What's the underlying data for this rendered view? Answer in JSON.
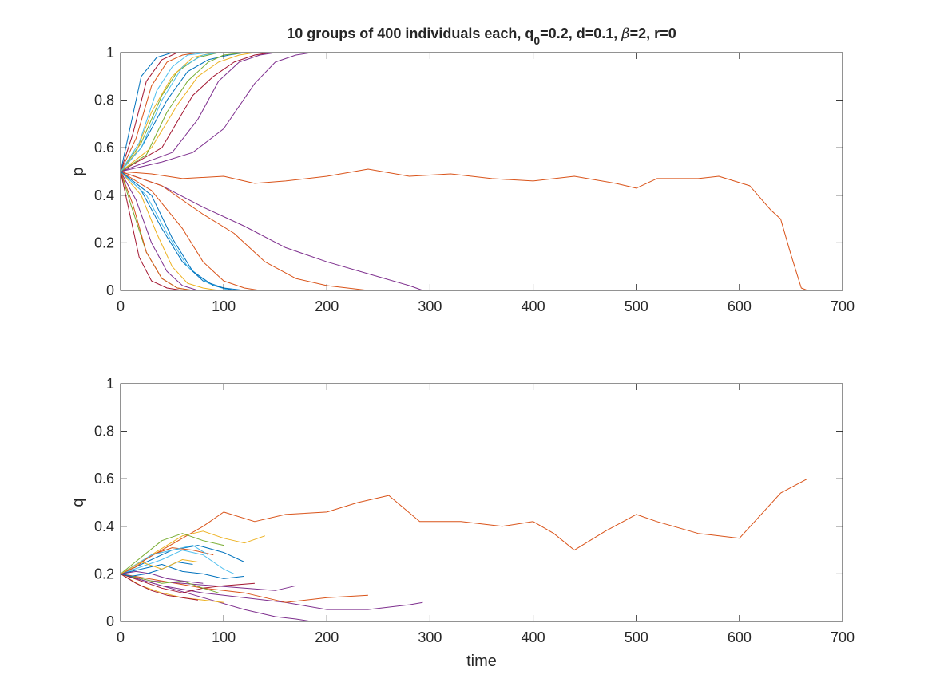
{
  "chart_data": [
    {
      "type": "line",
      "title": "10 groups of 400 individuals each, q0=0.2, d=0.1, β=2, r=0",
      "title_parts": {
        "prefix": "10 groups of 400 individuals each, q",
        "subscript": "0",
        "middle": "=0.2, d=0.1, ",
        "beta": "β",
        "suffix": "=2, r=0"
      },
      "xlabel": "",
      "ylabel": "p",
      "xlim": [
        0,
        700
      ],
      "ylim": [
        0,
        1
      ],
      "xticks": [
        0,
        100,
        200,
        300,
        400,
        500,
        600,
        700
      ],
      "yticks": [
        0,
        0.2,
        0.4,
        0.6,
        0.8,
        1
      ],
      "xtick_labels": [
        "0",
        "100",
        "200",
        "300",
        "400",
        "500",
        "600",
        "700"
      ],
      "ytick_labels": [
        "0",
        "0.2",
        "0.4",
        "0.6",
        "0.8",
        "1"
      ],
      "grid": false,
      "series": [
        {
          "color": "#D95319",
          "x": [
            0,
            30,
            60,
            100,
            130,
            160,
            200,
            240,
            280,
            320,
            360,
            400,
            440,
            480,
            500,
            520,
            560,
            580,
            610,
            630,
            640,
            650,
            660,
            666
          ],
          "y": [
            0.5,
            0.49,
            0.47,
            0.48,
            0.45,
            0.46,
            0.48,
            0.51,
            0.48,
            0.49,
            0.47,
            0.46,
            0.48,
            0.45,
            0.43,
            0.47,
            0.47,
            0.48,
            0.44,
            0.34,
            0.3,
            0.15,
            0.01,
            0.0
          ]
        },
        {
          "color": "#7E2F8E",
          "x": [
            0,
            40,
            80,
            120,
            160,
            200,
            240,
            280,
            293
          ],
          "y": [
            0.5,
            0.44,
            0.35,
            0.27,
            0.18,
            0.12,
            0.07,
            0.02,
            0.0
          ]
        },
        {
          "color": "#D95319",
          "x": [
            0,
            40,
            80,
            110,
            140,
            170,
            200,
            240
          ],
          "y": [
            0.5,
            0.44,
            0.32,
            0.24,
            0.12,
            0.05,
            0.02,
            0.0
          ]
        },
        {
          "color": "#7E2F8E",
          "x": [
            0,
            40,
            70,
            100,
            130,
            150,
            170,
            185
          ],
          "y": [
            0.5,
            0.54,
            0.58,
            0.68,
            0.87,
            0.96,
            0.99,
            1.0
          ]
        },
        {
          "color": "#7E2F8E",
          "x": [
            0,
            50,
            75,
            95,
            115,
            135,
            150
          ],
          "y": [
            0.5,
            0.58,
            0.72,
            0.88,
            0.96,
            0.99,
            1.0
          ]
        },
        {
          "color": "#A2142F",
          "x": [
            0,
            40,
            70,
            90,
            110,
            130,
            145
          ],
          "y": [
            0.5,
            0.6,
            0.82,
            0.9,
            0.96,
            0.99,
            1.0
          ]
        },
        {
          "color": "#EDB120",
          "x": [
            0,
            30,
            55,
            75,
            95,
            115,
            130
          ],
          "y": [
            0.5,
            0.6,
            0.78,
            0.9,
            0.96,
            0.99,
            1.0
          ]
        },
        {
          "color": "#0072BD",
          "x": [
            0,
            20,
            45,
            65,
            85,
            105,
            120
          ],
          "y": [
            0.5,
            0.6,
            0.8,
            0.92,
            0.97,
            0.99,
            1.0
          ]
        },
        {
          "color": "#77AC30",
          "x": [
            0,
            20,
            40,
            55,
            75,
            95,
            110
          ],
          "y": [
            0.5,
            0.62,
            0.82,
            0.92,
            0.98,
            1.0,
            1.0
          ]
        },
        {
          "color": "#4DBEEE",
          "x": [
            0,
            18,
            35,
            50,
            65,
            85,
            100
          ],
          "y": [
            0.5,
            0.62,
            0.84,
            0.94,
            0.99,
            1.0,
            1.0
          ]
        },
        {
          "color": "#D95319",
          "x": [
            0,
            15,
            30,
            45,
            60,
            75,
            90
          ],
          "y": [
            0.5,
            0.64,
            0.86,
            0.96,
            0.99,
            1.0,
            1.0
          ]
        },
        {
          "color": "#A2142F",
          "x": [
            0,
            12,
            25,
            40,
            55,
            70,
            85
          ],
          "y": [
            0.5,
            0.66,
            0.88,
            0.97,
            1.0,
            1.0,
            1.0
          ]
        },
        {
          "color": "#EDB120",
          "x": [
            0,
            15,
            30,
            50,
            70,
            90,
            110
          ],
          "y": [
            0.5,
            0.58,
            0.75,
            0.9,
            0.98,
            1.0,
            1.0
          ]
        },
        {
          "color": "#0072BD",
          "x": [
            0,
            10,
            20,
            35,
            50,
            65,
            80
          ],
          "y": [
            0.5,
            0.7,
            0.9,
            0.98,
            1.0,
            1.0,
            1.0
          ]
        },
        {
          "color": "#77AC30",
          "x": [
            0,
            25,
            45,
            65,
            85,
            100,
            120
          ],
          "y": [
            0.5,
            0.57,
            0.75,
            0.88,
            0.96,
            0.99,
            1.0
          ]
        },
        {
          "color": "#4DBEEE",
          "x": [
            0,
            20,
            40,
            60,
            80,
            95
          ],
          "y": [
            0.5,
            0.6,
            0.8,
            0.94,
            0.99,
            1.0
          ]
        },
        {
          "color": "#D95319",
          "x": [
            0,
            30,
            60,
            80,
            100,
            120,
            135
          ],
          "y": [
            0.5,
            0.42,
            0.26,
            0.12,
            0.04,
            0.01,
            0.0
          ]
        },
        {
          "color": "#0072BD",
          "x": [
            0,
            20,
            40,
            60,
            80,
            100,
            120
          ],
          "y": [
            0.5,
            0.42,
            0.26,
            0.12,
            0.04,
            0.01,
            0.0
          ]
        },
        {
          "color": "#EDB120",
          "x": [
            0,
            20,
            35,
            50,
            65,
            80,
            95
          ],
          "y": [
            0.5,
            0.4,
            0.24,
            0.1,
            0.03,
            0.01,
            0.0
          ]
        },
        {
          "color": "#7E2F8E",
          "x": [
            0,
            15,
            30,
            45,
            60,
            75,
            90
          ],
          "y": [
            0.5,
            0.38,
            0.2,
            0.08,
            0.02,
            0.0,
            0.0
          ]
        },
        {
          "color": "#77AC30",
          "x": [
            0,
            10,
            25,
            40,
            55,
            70,
            85
          ],
          "y": [
            0.5,
            0.36,
            0.16,
            0.05,
            0.01,
            0.0,
            0.0
          ]
        },
        {
          "color": "#4DBEEE",
          "x": [
            0,
            25,
            45,
            65,
            85,
            105
          ],
          "y": [
            0.5,
            0.4,
            0.24,
            0.1,
            0.03,
            0.0
          ]
        },
        {
          "color": "#A2142F",
          "x": [
            0,
            8,
            18,
            30,
            45,
            60,
            75
          ],
          "y": [
            0.5,
            0.34,
            0.14,
            0.04,
            0.01,
            0.0,
            0.0
          ]
        },
        {
          "color": "#0072BD",
          "x": [
            0,
            30,
            50,
            70,
            90,
            110
          ],
          "y": [
            0.5,
            0.4,
            0.22,
            0.08,
            0.02,
            0.0
          ]
        },
        {
          "color": "#D95319",
          "x": [
            0,
            12,
            25,
            40,
            55,
            70
          ],
          "y": [
            0.5,
            0.36,
            0.16,
            0.05,
            0.01,
            0.0
          ]
        }
      ]
    },
    {
      "type": "line",
      "title": "",
      "xlabel": "time",
      "ylabel": "q",
      "xlim": [
        0,
        700
      ],
      "ylim": [
        0,
        1
      ],
      "xticks": [
        0,
        100,
        200,
        300,
        400,
        500,
        600,
        700
      ],
      "yticks": [
        0,
        0.2,
        0.4,
        0.6,
        0.8,
        1
      ],
      "xtick_labels": [
        "0",
        "100",
        "200",
        "300",
        "400",
        "500",
        "600",
        "700"
      ],
      "ytick_labels": [
        "0",
        "0.2",
        "0.4",
        "0.6",
        "0.8",
        "1"
      ],
      "grid": false,
      "series": [
        {
          "color": "#D95319",
          "x": [
            0,
            40,
            80,
            100,
            130,
            160,
            200,
            230,
            260,
            290,
            330,
            370,
            400,
            420,
            440,
            470,
            500,
            520,
            560,
            600,
            640,
            666
          ],
          "y": [
            0.2,
            0.3,
            0.4,
            0.46,
            0.42,
            0.45,
            0.46,
            0.5,
            0.53,
            0.42,
            0.42,
            0.4,
            0.42,
            0.37,
            0.3,
            0.38,
            0.45,
            0.42,
            0.37,
            0.35,
            0.54,
            0.6
          ]
        },
        {
          "color": "#7E2F8E",
          "x": [
            0,
            40,
            80,
            120,
            160,
            200,
            240,
            280,
            293
          ],
          "y": [
            0.2,
            0.15,
            0.12,
            0.1,
            0.08,
            0.05,
            0.05,
            0.07,
            0.08
          ]
        },
        {
          "color": "#D95319",
          "x": [
            0,
            40,
            80,
            120,
            160,
            200,
            240
          ],
          "y": [
            0.2,
            0.17,
            0.14,
            0.12,
            0.08,
            0.1,
            0.11
          ]
        },
        {
          "color": "#7E2F8E",
          "x": [
            0,
            40,
            80,
            120,
            150,
            170,
            185
          ],
          "y": [
            0.2,
            0.15,
            0.1,
            0.05,
            0.02,
            0.01,
            0.0
          ]
        },
        {
          "color": "#EDB120",
          "x": [
            0,
            30,
            60,
            80,
            100,
            120,
            140
          ],
          "y": [
            0.2,
            0.28,
            0.36,
            0.38,
            0.35,
            0.33,
            0.36
          ]
        },
        {
          "color": "#7E2F8E",
          "x": [
            0,
            30,
            60,
            90,
            120,
            150,
            170
          ],
          "y": [
            0.2,
            0.17,
            0.16,
            0.15,
            0.14,
            0.13,
            0.15
          ]
        },
        {
          "color": "#0072BD",
          "x": [
            0,
            25,
            50,
            75,
            100,
            120
          ],
          "y": [
            0.2,
            0.25,
            0.3,
            0.32,
            0.29,
            0.25
          ]
        },
        {
          "color": "#77AC30",
          "x": [
            0,
            20,
            40,
            60,
            80,
            100
          ],
          "y": [
            0.2,
            0.27,
            0.34,
            0.37,
            0.34,
            0.32
          ]
        },
        {
          "color": "#4DBEEE",
          "x": [
            0,
            20,
            40,
            60,
            80,
            100,
            110
          ],
          "y": [
            0.2,
            0.23,
            0.26,
            0.3,
            0.28,
            0.22,
            0.2
          ]
        },
        {
          "color": "#A2142F",
          "x": [
            0,
            20,
            40,
            60,
            80,
            100,
            130
          ],
          "y": [
            0.2,
            0.17,
            0.14,
            0.12,
            0.14,
            0.15,
            0.16
          ]
        },
        {
          "color": "#EDB120",
          "x": [
            0,
            20,
            40,
            60,
            80,
            100
          ],
          "y": [
            0.2,
            0.15,
            0.12,
            0.1,
            0.09,
            0.08
          ]
        },
        {
          "color": "#0072BD",
          "x": [
            0,
            20,
            40,
            60,
            80,
            100,
            120
          ],
          "y": [
            0.2,
            0.22,
            0.24,
            0.21,
            0.2,
            0.18,
            0.19
          ]
        },
        {
          "color": "#D95319",
          "x": [
            0,
            15,
            30,
            50,
            70,
            90
          ],
          "y": [
            0.2,
            0.23,
            0.28,
            0.31,
            0.3,
            0.28
          ]
        },
        {
          "color": "#77AC30",
          "x": [
            0,
            20,
            40,
            60,
            80,
            95
          ],
          "y": [
            0.2,
            0.18,
            0.16,
            0.17,
            0.14,
            0.12
          ]
        },
        {
          "color": "#4DBEEE",
          "x": [
            0,
            15,
            30,
            50,
            70,
            85
          ],
          "y": [
            0.2,
            0.24,
            0.28,
            0.3,
            0.32,
            0.28
          ]
        },
        {
          "color": "#A2142F",
          "x": [
            0,
            15,
            30,
            45,
            60,
            75
          ],
          "y": [
            0.2,
            0.16,
            0.13,
            0.11,
            0.1,
            0.09
          ]
        },
        {
          "color": "#7E2F8E",
          "x": [
            0,
            15,
            30,
            45,
            60,
            80
          ],
          "y": [
            0.2,
            0.21,
            0.2,
            0.18,
            0.17,
            0.16
          ]
        },
        {
          "color": "#0072BD",
          "x": [
            0,
            10,
            25,
            40,
            55,
            70
          ],
          "y": [
            0.2,
            0.19,
            0.2,
            0.22,
            0.25,
            0.24
          ]
        },
        {
          "color": "#EDB120",
          "x": [
            0,
            20,
            40,
            60,
            75
          ],
          "y": [
            0.2,
            0.25,
            0.22,
            0.26,
            0.25
          ]
        }
      ]
    }
  ]
}
